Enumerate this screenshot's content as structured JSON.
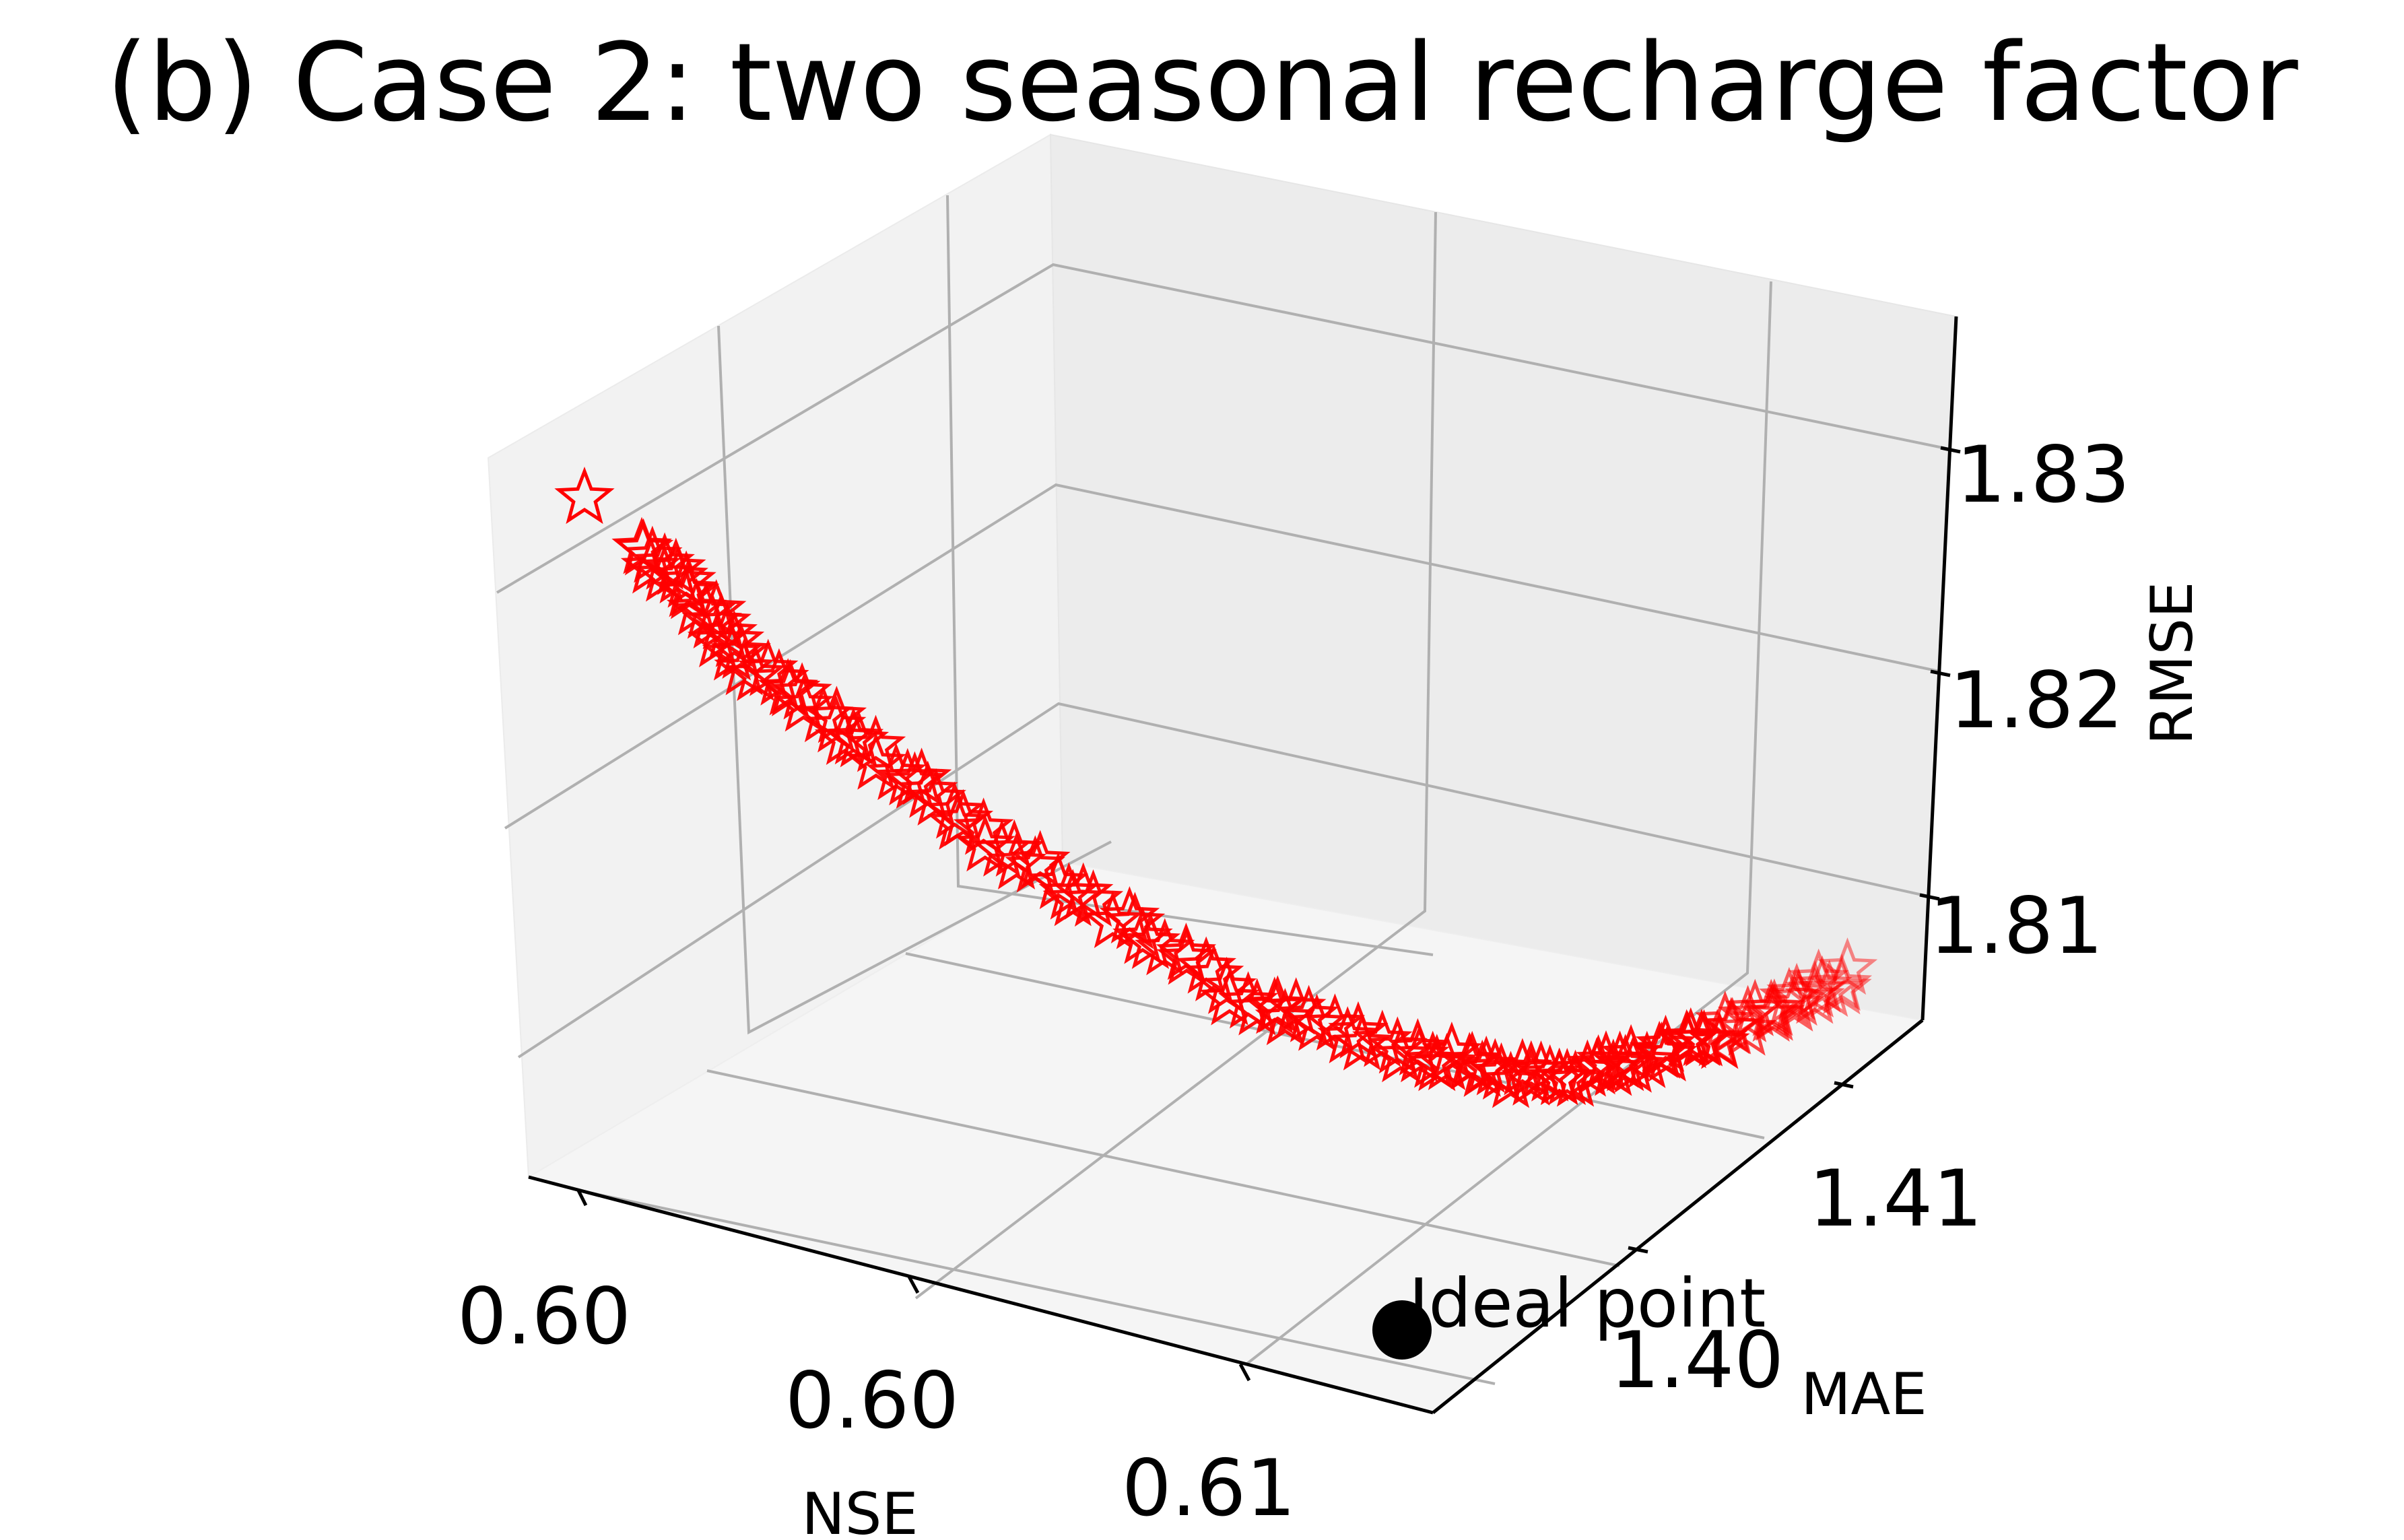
{
  "chart_data": {
    "type": "scatter",
    "projection": "3d",
    "title": "(b) Case 2: two seasonal recharge factor",
    "xlabel": "NSE",
    "ylabel": "MAE",
    "zlabel": "RMSE",
    "xticks": [
      "0.60",
      "0.60",
      "0.61"
    ],
    "yticks": [
      "1.40",
      "1.41"
    ],
    "zticks": [
      "1.81",
      "1.82",
      "1.83"
    ],
    "grid": true,
    "marker": "star",
    "marker_color": "#ff0000",
    "ideal_point": {
      "label": "Ideal point",
      "marker": "circle",
      "color": "#000000"
    }
  }
}
